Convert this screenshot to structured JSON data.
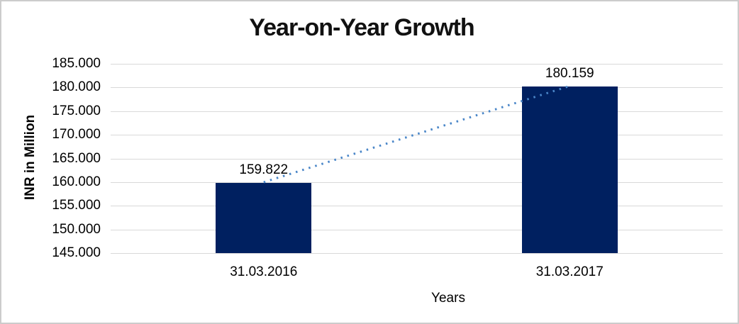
{
  "window": {
    "background": "#ffffff",
    "border_color": "#cccccc"
  },
  "chart_data": {
    "type": "bar",
    "title": "Year-on-Year Growth",
    "categories": [
      "31.03.2016",
      "31.03.2017"
    ],
    "values": [
      159.822,
      180.159
    ],
    "data_labels": [
      "159.822",
      "180.159"
    ],
    "xlabel": "Years",
    "ylabel": "INR in Million",
    "ylim": [
      145.0,
      185.0
    ],
    "ytick_step": 5.0,
    "ytick_labels": [
      "185.000",
      "180.000",
      "175.000",
      "170.000",
      "165.000",
      "160.000",
      "155.000",
      "150.000",
      "145.000"
    ],
    "grid": true,
    "legend": "none",
    "bar_color": "#002060",
    "gridline_color": "#d9d9d9",
    "text_color": "#000000",
    "trendline": {
      "style": "dotted",
      "color": "#4a86c8",
      "from_value": 159.822,
      "to_value": 180.159
    }
  }
}
